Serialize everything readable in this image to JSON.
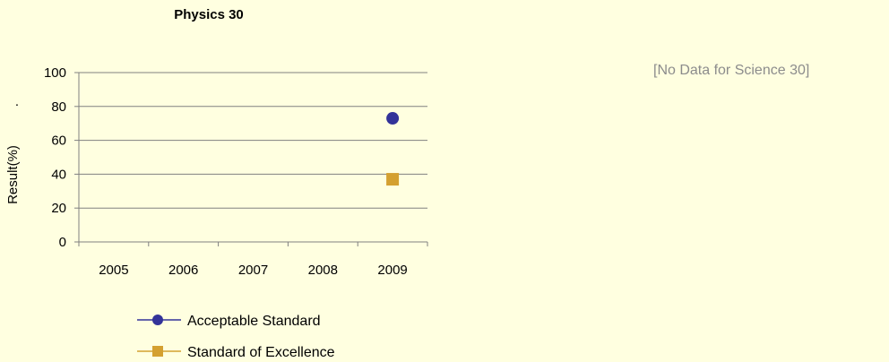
{
  "chart_data": {
    "type": "scatter",
    "title": "Physics 30",
    "ylabel": "Result(%)",
    "ylabel_mark": ".",
    "categories": [
      "2005",
      "2006",
      "2007",
      "2008",
      "2009"
    ],
    "ylim": [
      0,
      100
    ],
    "yticks": [
      0,
      20,
      40,
      60,
      80,
      100
    ],
    "grid": true,
    "legend_position": "bottom",
    "series": [
      {
        "name": "Acceptable Standard",
        "marker": "circle",
        "color": "#333399",
        "values": [
          null,
          null,
          null,
          null,
          73
        ]
      },
      {
        "name": "Standard of Excellence",
        "marker": "square",
        "color": "#d4a030",
        "values": [
          null,
          null,
          null,
          null,
          37
        ]
      }
    ]
  },
  "side_note": "[No Data for Science 30]"
}
